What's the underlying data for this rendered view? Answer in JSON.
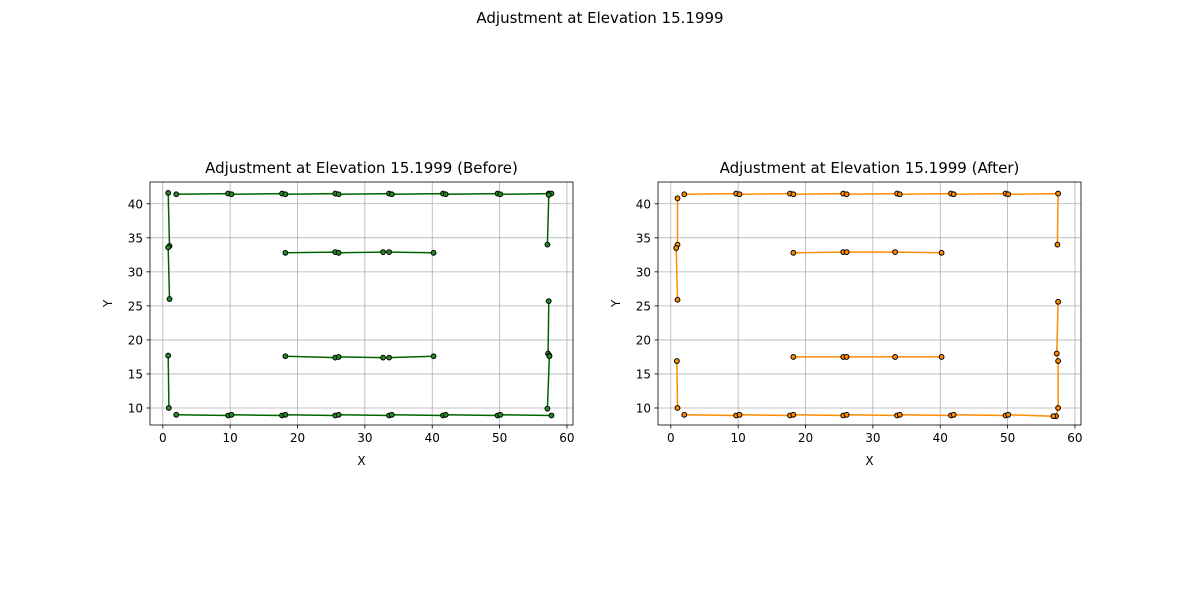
{
  "suptitle": "Adjustment at Elevation 15.1999",
  "chart_data": [
    {
      "type": "line",
      "title": "Adjustment at Elevation 15.1999 (Before)",
      "xlabel": "X",
      "ylabel": "Y",
      "xlim": [
        -1.9,
        60.9
      ],
      "ylim": [
        7.5,
        43.2
      ],
      "xticks": [
        0,
        10,
        20,
        30,
        40,
        50,
        60
      ],
      "yticks": [
        10,
        15,
        20,
        25,
        30,
        35,
        40
      ],
      "grid": true,
      "line_color": "#006400",
      "marker_color": "#228B22",
      "series": [
        {
          "points": [
            [
              0.8,
              41.6
            ],
            [
              1.0,
              33.8
            ],
            [
              0.8,
              33.6
            ],
            [
              1.0,
              26.0
            ]
          ]
        },
        {
          "points": [
            [
              2.0,
              41.4
            ],
            [
              9.7,
              41.5
            ],
            [
              10.2,
              41.4
            ],
            [
              17.7,
              41.5
            ],
            [
              18.2,
              41.4
            ],
            [
              25.6,
              41.5
            ],
            [
              26.1,
              41.4
            ],
            [
              33.6,
              41.5
            ],
            [
              34.0,
              41.4
            ],
            [
              41.6,
              41.5
            ],
            [
              42.0,
              41.4
            ],
            [
              49.7,
              41.5
            ],
            [
              50.1,
              41.4
            ],
            [
              57.3,
              41.5
            ],
            [
              57.7,
              41.5
            ]
          ]
        },
        {
          "points": [
            [
              57.3,
              41.3
            ],
            [
              57.1,
              34.0
            ]
          ]
        },
        {
          "points": [
            [
              18.2,
              32.8
            ],
            [
              25.6,
              32.9
            ],
            [
              26.1,
              32.8
            ],
            [
              32.7,
              32.9
            ],
            [
              33.6,
              32.9
            ],
            [
              40.2,
              32.8
            ]
          ]
        },
        {
          "points": [
            [
              57.3,
              25.7
            ],
            [
              57.2,
              18.0
            ],
            [
              57.4,
              17.7
            ],
            [
              57.4,
              17.6
            ],
            [
              57.1,
              9.9
            ]
          ]
        },
        {
          "points": [
            [
              18.2,
              17.6
            ],
            [
              25.6,
              17.4
            ],
            [
              26.1,
              17.5
            ],
            [
              32.7,
              17.4
            ],
            [
              33.6,
              17.4
            ],
            [
              40.2,
              17.6
            ]
          ]
        },
        {
          "points": [
            [
              0.8,
              17.7
            ],
            [
              0.9,
              10.0
            ]
          ]
        },
        {
          "points": [
            [
              2.0,
              9.0
            ],
            [
              9.7,
              8.9
            ],
            [
              10.2,
              9.0
            ],
            [
              17.7,
              8.9
            ],
            [
              18.2,
              9.0
            ],
            [
              25.6,
              8.9
            ],
            [
              26.1,
              9.0
            ],
            [
              33.6,
              8.9
            ],
            [
              34.0,
              9.0
            ],
            [
              41.6,
              8.9
            ],
            [
              42.0,
              9.0
            ],
            [
              49.7,
              8.9
            ],
            [
              50.1,
              9.0
            ],
            [
              57.7,
              8.9
            ]
          ]
        }
      ]
    },
    {
      "type": "line",
      "title": "Adjustment at Elevation 15.1999 (After)",
      "xlabel": "X",
      "ylabel": "Y",
      "xlim": [
        -1.9,
        60.9
      ],
      "ylim": [
        7.5,
        43.2
      ],
      "xticks": [
        0,
        10,
        20,
        30,
        40,
        50,
        60
      ],
      "yticks": [
        10,
        15,
        20,
        25,
        30,
        35,
        40
      ],
      "grid": true,
      "line_color": "#FF8C00",
      "marker_color": "#FF8C00",
      "series": [
        {
          "points": [
            [
              2.0,
              41.4
            ],
            [
              9.7,
              41.5
            ],
            [
              10.2,
              41.4
            ],
            [
              17.7,
              41.5
            ],
            [
              18.2,
              41.4
            ],
            [
              25.6,
              41.5
            ],
            [
              26.1,
              41.4
            ],
            [
              33.6,
              41.5
            ],
            [
              34.0,
              41.4
            ],
            [
              41.6,
              41.5
            ],
            [
              42.0,
              41.4
            ],
            [
              49.7,
              41.5
            ],
            [
              50.1,
              41.4
            ],
            [
              57.5,
              41.5
            ],
            [
              57.4,
              34.0
            ]
          ]
        },
        {
          "points": [
            [
              1.0,
              40.8
            ],
            [
              1.0,
              34.0
            ],
            [
              0.8,
              33.5
            ],
            [
              1.0,
              25.9
            ]
          ]
        },
        {
          "points": [
            [
              18.2,
              32.8
            ],
            [
              25.6,
              32.9
            ],
            [
              26.1,
              32.9
            ],
            [
              33.3,
              32.9
            ],
            [
              40.2,
              32.8
            ]
          ]
        },
        {
          "points": [
            [
              57.5,
              25.6
            ],
            [
              57.3,
              18.0
            ],
            [
              57.5,
              16.9
            ],
            [
              57.5,
              10.0
            ],
            [
              57.2,
              8.8
            ]
          ]
        },
        {
          "points": [
            [
              18.2,
              17.5
            ],
            [
              25.6,
              17.5
            ],
            [
              26.1,
              17.5
            ],
            [
              33.3,
              17.5
            ],
            [
              40.2,
              17.5
            ]
          ]
        },
        {
          "points": [
            [
              0.9,
              16.9
            ],
            [
              1.0,
              10.0
            ]
          ]
        },
        {
          "points": [
            [
              2.0,
              9.0
            ],
            [
              9.7,
              8.9
            ],
            [
              10.2,
              9.0
            ],
            [
              17.7,
              8.9
            ],
            [
              18.2,
              9.0
            ],
            [
              25.6,
              8.9
            ],
            [
              26.1,
              9.0
            ],
            [
              33.6,
              8.9
            ],
            [
              34.0,
              9.0
            ],
            [
              41.6,
              8.9
            ],
            [
              42.0,
              9.0
            ],
            [
              49.7,
              8.9
            ],
            [
              50.1,
              9.0
            ],
            [
              56.8,
              8.8
            ]
          ]
        }
      ]
    }
  ]
}
